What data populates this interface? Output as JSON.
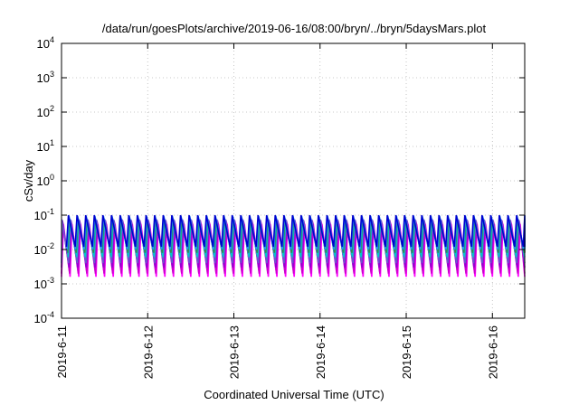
{
  "chart_data": {
    "type": "line",
    "title": "/data/run/goesPlots/archive/2019-06-16/08:00/bryn/../bryn/5daysMars.plot",
    "xlabel": "Coordinated Universal Time (UTC)",
    "ylabel": "cSv/day",
    "y_scale": "log",
    "ylim": [
      0.0001,
      10000
    ],
    "y_ticks": [
      {
        "value": 0.0001,
        "base": "10",
        "exp": "-4"
      },
      {
        "value": 0.001,
        "base": "10",
        "exp": "-3"
      },
      {
        "value": 0.01,
        "base": "10",
        "exp": "-2"
      },
      {
        "value": 0.1,
        "base": "10",
        "exp": "-1"
      },
      {
        "value": 1,
        "base": "10",
        "exp": "0"
      },
      {
        "value": 10,
        "base": "10",
        "exp": "1"
      },
      {
        "value": 100,
        "base": "10",
        "exp": "2"
      },
      {
        "value": 1000,
        "base": "10",
        "exp": "3"
      },
      {
        "value": 10000,
        "base": "10",
        "exp": "4"
      }
    ],
    "xlim": [
      "2019-06-11 00:00",
      "2019-06-16 09:00"
    ],
    "x_ticks": [
      "2019-6-11",
      "2019-6-12",
      "2019-6-13",
      "2019-6-14",
      "2019-6-15",
      "2019-6-16"
    ],
    "grid": true,
    "pattern": "sawtooth, period ~2.4 hours, rising from ~0.002-0.01 to ~0.03-0.1 cSv/day",
    "series": [
      {
        "color": "#ff00ff",
        "low": 0.0016,
        "high": 0.055
      },
      {
        "color": "#cc00cc",
        "low": 0.002,
        "high": 0.06
      },
      {
        "color": "#9400d3",
        "low": 0.003,
        "high": 0.07
      },
      {
        "color": "#6a5acd",
        "low": 0.004,
        "high": 0.075
      },
      {
        "color": "#00c8c8",
        "low": 0.006,
        "high": 0.065
      },
      {
        "color": "#2e8b57",
        "low": 0.008,
        "high": 0.08
      },
      {
        "color": "#1e90ff",
        "low": 0.01,
        "high": 0.095
      },
      {
        "color": "#0000cd",
        "low": 0.012,
        "high": 0.1
      }
    ]
  }
}
